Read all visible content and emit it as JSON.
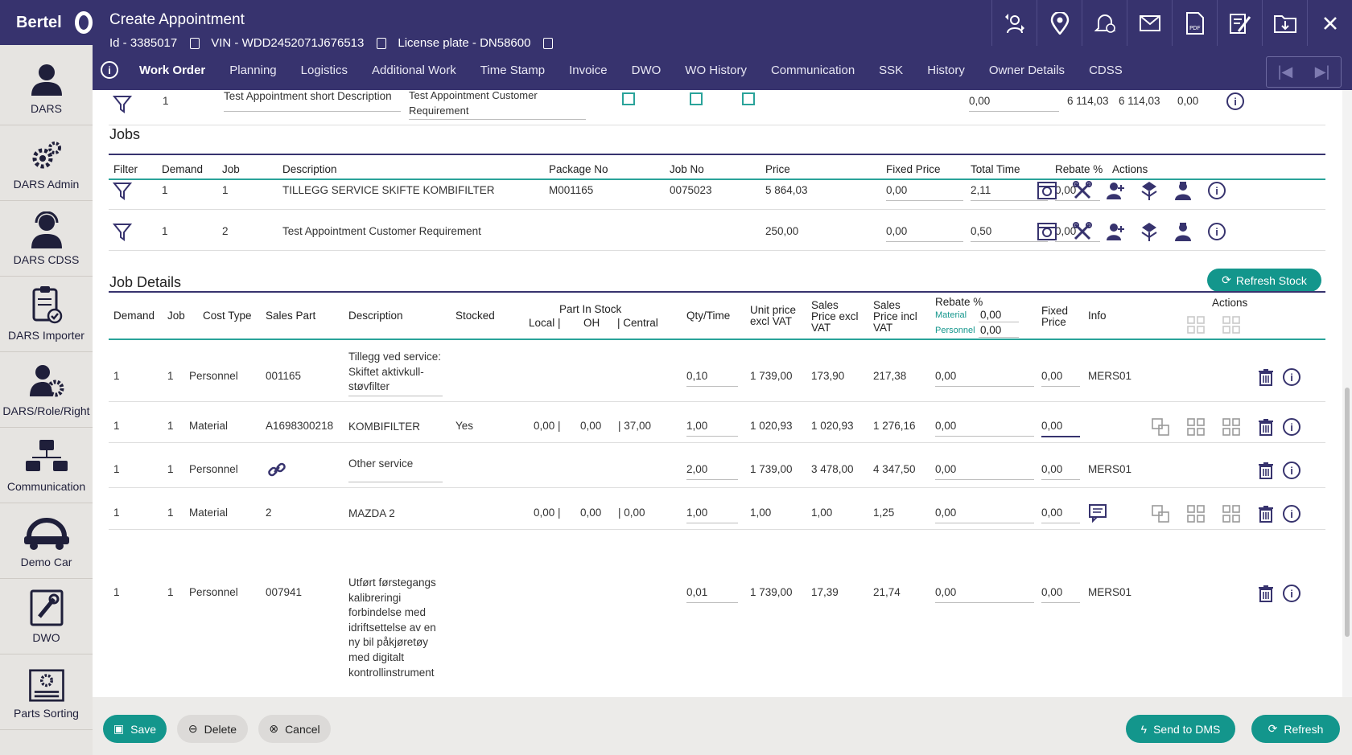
{
  "brand": {
    "name": "Bertel"
  },
  "sidebar": {
    "items": [
      {
        "label": "DARS",
        "icon": "user-icon"
      },
      {
        "label": "DARS Admin",
        "icon": "gears-icon"
      },
      {
        "label": "DARS CDSS",
        "icon": "headset-user-icon"
      },
      {
        "label": "DARS Importer",
        "icon": "clipboard-check-icon"
      },
      {
        "label": "DARS/Role/Right",
        "icon": "user-gear-icon"
      },
      {
        "label": "Communication",
        "icon": "network-icon"
      },
      {
        "label": "Demo Car",
        "icon": "demo-car-icon"
      },
      {
        "label": "DWO",
        "icon": "wrench-icon"
      },
      {
        "label": "Parts Sorting",
        "icon": "parts-sorting-icon"
      }
    ]
  },
  "header": {
    "title": "Create Appointment",
    "id": "Id - 3385017",
    "vin": "VIN - WDD2452071J676513",
    "license": "License plate - DN58600",
    "icons": [
      "transfer-user-icon",
      "map-pin-icon",
      "alarm-bell-icon",
      "mail-icon",
      "pdf-icon",
      "edit-document-icon",
      "folder-download-icon",
      "close-icon"
    ]
  },
  "tabs": [
    "Work Order",
    "Planning",
    "Logistics",
    "Additional Work",
    "Time Stamp",
    "Invoice",
    "DWO",
    "WO History",
    "Communication",
    "SSK",
    "History",
    "Owner Details",
    "CDSS"
  ],
  "top_row": {
    "demand": "1",
    "short_description": "Test Appointment short Description",
    "customer_requirement": "Test Appointment Customer Requirement",
    "value": "0,00",
    "price1": "6 114,03",
    "price2": "6 114,03",
    "price3": "0,00"
  },
  "jobs": {
    "title": "Jobs",
    "headers": {
      "filter": "Filter",
      "demand": "Demand",
      "job": "Job",
      "description": "Description",
      "package_no": "Package No",
      "job_no": "Job No",
      "price": "Price",
      "fixed_price": "Fixed Price",
      "total_time": "Total Time",
      "rebate": "Rebate %",
      "actions": "Actions"
    },
    "rows": [
      {
        "demand": "1",
        "job": "1",
        "description": "TILLEGG SERVICE SKIFTE KOMBIFILTER",
        "package_no": "M001165",
        "job_no": "0075023",
        "price": "5 864,03",
        "fixed_price": "0,00",
        "total_time": "2,11",
        "rebate": "0,00"
      },
      {
        "demand": "1",
        "job": "2",
        "description": "Test Appointment Customer Requirement",
        "package_no": "",
        "job_no": "",
        "price": "250,00",
        "fixed_price": "0,00",
        "total_time": "0,50",
        "rebate": "0,00"
      }
    ]
  },
  "job_details": {
    "title": "Job Details",
    "refresh_stock": "Refresh Stock",
    "headers": {
      "demand": "Demand",
      "job": "Job",
      "cost_type": "Cost Type",
      "sales_part": "Sales Part",
      "description": "Description",
      "stocked": "Stocked",
      "part_in_stock": "Part In Stock",
      "local": "Local |",
      "oh": "OH",
      "central": "| Central",
      "qty_time": "Qty/Time",
      "unit_price_1": "Unit price",
      "unit_price_2": "excl VAT",
      "sales_excl_1": "Sales",
      "sales_excl_2": "Price excl",
      "sales_excl_3": "VAT",
      "sales_incl_1": "Sales",
      "sales_incl_2": "Price incl",
      "sales_incl_3": "VAT",
      "rebate": "Rebate %",
      "material_label": "Material",
      "material_value": "0,00",
      "personnel_label": "Personnel",
      "personnel_value": "0,00",
      "fixed_1": "Fixed",
      "fixed_2": "Price",
      "info": "Info",
      "actions": "Actions"
    },
    "rows": [
      {
        "demand": "1",
        "job": "1",
        "cost_type": "Personnel",
        "sales_part": "001165",
        "description": "Tillegg ved service: Skiftet aktivkull-støvfilter",
        "stocked": "",
        "local": "",
        "oh": "",
        "central": "",
        "qty": "0,10",
        "unit": "1 739,00",
        "sales_excl": "173,90",
        "sales_incl": "217,38",
        "rebate": "0,00",
        "fixed": "0,00",
        "info": "MERS01"
      },
      {
        "demand": "1",
        "job": "1",
        "cost_type": "Material",
        "sales_part": "A1698300218",
        "description": "KOMBIFILTER",
        "stocked": "Yes",
        "local": "0,00 |",
        "oh": "0,00",
        "central": "| 37,00",
        "qty": "1,00",
        "unit": "1 020,93",
        "sales_excl": "1 020,93",
        "sales_incl": "1 276,16",
        "rebate": "0,00",
        "fixed": "0,00",
        "info": ""
      },
      {
        "demand": "1",
        "job": "1",
        "cost_type": "Personnel",
        "sales_part": "",
        "description": "Other service",
        "stocked": "",
        "local": "",
        "oh": "",
        "central": "",
        "qty": "2,00",
        "unit": "1 739,00",
        "sales_excl": "3 478,00",
        "sales_incl": "4 347,50",
        "rebate": "0,00",
        "fixed": "0,00",
        "info": "MERS01"
      },
      {
        "demand": "1",
        "job": "1",
        "cost_type": "Material",
        "sales_part": "2",
        "description": "MAZDA 2",
        "stocked": "",
        "local": "0,00 |",
        "oh": "0,00",
        "central": "| 0,00",
        "qty": "1,00",
        "unit": "1,00",
        "sales_excl": "1,00",
        "sales_incl": "1,25",
        "rebate": "0,00",
        "fixed": "0,00",
        "info": ""
      },
      {
        "demand": "1",
        "job": "1",
        "cost_type": "Personnel",
        "sales_part": "007941",
        "description": "Utført førstegangs kalibreringi forbindelse med idriftsettelse av en ny bil påkjøretøy med digitalt kontrollinstrument",
        "stocked": "",
        "local": "",
        "oh": "",
        "central": "",
        "qty": "0,01",
        "unit": "1 739,00",
        "sales_excl": "17,39",
        "sales_incl": "21,74",
        "rebate": "0,00",
        "fixed": "0,00",
        "info": "MERS01"
      }
    ]
  },
  "footer": {
    "save": "Save",
    "delete": "Delete",
    "cancel": "Cancel",
    "send_dms": "Send to DMS",
    "refresh": "Refresh"
  },
  "colors": {
    "primary": "#37336e",
    "teal": "#13968c",
    "sidebar_bg": "#e6e4e1"
  }
}
